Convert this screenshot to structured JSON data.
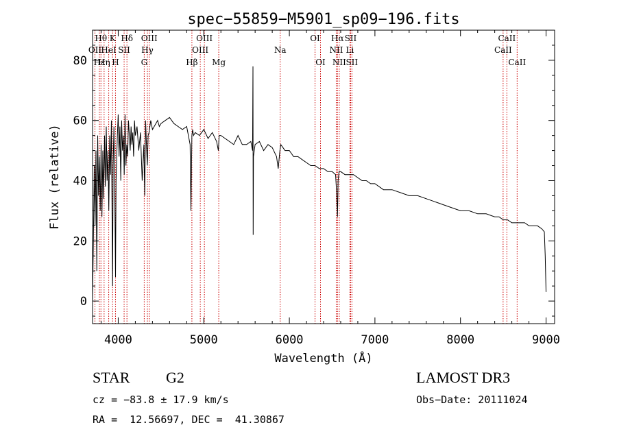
{
  "chart_data": {
    "type": "line",
    "title": "spec−55859−M5901_sp09−196.fits",
    "xlabel": "Wavelength (Å)",
    "ylabel": "Flux (relative)",
    "xlim": [
      3700,
      9100
    ],
    "ylim": [
      -7.5,
      90
    ],
    "xticks": [
      4000,
      5000,
      6000,
      7000,
      8000,
      9000
    ],
    "yticks": [
      0,
      20,
      40,
      60,
      80
    ],
    "spectrum": {
      "x": [
        3700,
        3710,
        3720,
        3730,
        3740,
        3750,
        3760,
        3770,
        3780,
        3790,
        3800,
        3810,
        3820,
        3830,
        3840,
        3850,
        3860,
        3870,
        3880,
        3890,
        3900,
        3910,
        3920,
        3930,
        3934,
        3940,
        3950,
        3960,
        3968,
        3975,
        3990,
        4000,
        4010,
        4020,
        4030,
        4040,
        4050,
        4060,
        4070,
        4080,
        4090,
        4100,
        4110,
        4120,
        4130,
        4140,
        4150,
        4160,
        4170,
        4180,
        4190,
        4200,
        4220,
        4240,
        4260,
        4280,
        4300,
        4310,
        4320,
        4330,
        4340,
        4350,
        4360,
        4380,
        4400,
        4420,
        4440,
        4460,
        4480,
        4500,
        4550,
        4600,
        4650,
        4700,
        4750,
        4800,
        4840,
        4850,
        4861,
        4870,
        4880,
        4900,
        4950,
        5000,
        5050,
        5100,
        5150,
        5170,
        5180,
        5200,
        5250,
        5300,
        5350,
        5400,
        5450,
        5500,
        5550,
        5570,
        5575,
        5577,
        5580,
        5590,
        5600,
        5650,
        5700,
        5750,
        5800,
        5850,
        5870,
        5890,
        5900,
        5950,
        6000,
        6050,
        6100,
        6150,
        6200,
        6250,
        6300,
        6350,
        6400,
        6450,
        6500,
        6540,
        6555,
        6563,
        6570,
        6580,
        6600,
        6650,
        6700,
        6750,
        6800,
        6850,
        6900,
        6950,
        7000,
        7100,
        7200,
        7300,
        7400,
        7500,
        7600,
        7700,
        7800,
        7900,
        8000,
        8100,
        8200,
        8300,
        8400,
        8450,
        8500,
        8550,
        8600,
        8650,
        8700,
        8750,
        8800,
        8850,
        8900,
        8950,
        8980,
        8990,
        9000
      ],
      "y": [
        0,
        20,
        45,
        25,
        50,
        10,
        55,
        35,
        48,
        30,
        52,
        28,
        50,
        34,
        55,
        38,
        58,
        40,
        50,
        30,
        55,
        42,
        60,
        20,
        5,
        45,
        58,
        35,
        8,
        40,
        55,
        62,
        48,
        58,
        40,
        60,
        50,
        55,
        42,
        62,
        45,
        52,
        48,
        60,
        55,
        50,
        58,
        52,
        56,
        48,
        60,
        55,
        58,
        50,
        56,
        40,
        52,
        35,
        60,
        52,
        45,
        55,
        56,
        60,
        57,
        58,
        59,
        60,
        58,
        59,
        60,
        61,
        59,
        58,
        57,
        58,
        52,
        30,
        55,
        57,
        55,
        56,
        55,
        57,
        54,
        56,
        53,
        50,
        55,
        55,
        54,
        53,
        52,
        55,
        52,
        52,
        53,
        50,
        78,
        22,
        48,
        50,
        52,
        53,
        50,
        52,
        51,
        48,
        44,
        50,
        52,
        50,
        50,
        48,
        48,
        47,
        46,
        45,
        45,
        44,
        44,
        43,
        43,
        42,
        35,
        28,
        40,
        43,
        43,
        42,
        42,
        42,
        41,
        40,
        40,
        39,
        39,
        37,
        37,
        36,
        35,
        35,
        34,
        33,
        32,
        31,
        30,
        30,
        29,
        29,
        28,
        28,
        27,
        27,
        26,
        26,
        26,
        26,
        25,
        25,
        25,
        24,
        23,
        15,
        3
      ]
    },
    "line_markers": [
      {
        "label": "Hθ",
        "x": 3798,
        "row": 1
      },
      {
        "label": "OII",
        "x": 3728,
        "row": 2
      },
      {
        "label": "Hε",
        "x": 3780,
        "row": 3
      },
      {
        "label": "HeI",
        "x": 3889,
        "row": 2
      },
      {
        "label": "Hη",
        "x": 3835,
        "row": 3
      },
      {
        "label": "K",
        "x": 3934,
        "row": 1
      },
      {
        "label": "SII",
        "x": 4069,
        "row": 2
      },
      {
        "label": "H",
        "x": 3968,
        "row": 3
      },
      {
        "label": "Hδ",
        "x": 4102,
        "row": 1
      },
      {
        "label": "OIII",
        "x": 4363,
        "row": 1
      },
      {
        "label": "Hγ",
        "x": 4341,
        "row": 2
      },
      {
        "label": "G",
        "x": 4304,
        "row": 3
      },
      {
        "label": "Hβ",
        "x": 4861,
        "row": 3
      },
      {
        "label": "OIII",
        "x": 5007,
        "row": 1
      },
      {
        "label": "OIII",
        "x": 4959,
        "row": 2
      },
      {
        "label": "Mg",
        "x": 5175,
        "row": 3
      },
      {
        "label": "Na",
        "x": 5893,
        "row": 2
      },
      {
        "label": "OI",
        "x": 6300,
        "row": 1
      },
      {
        "label": "OI",
        "x": 6364,
        "row": 3
      },
      {
        "label": "Hα",
        "x": 6563,
        "row": 1
      },
      {
        "label": "SII",
        "x": 6716,
        "row": 1
      },
      {
        "label": "NII",
        "x": 6548,
        "row": 2
      },
      {
        "label": "Li",
        "x": 6708,
        "row": 2
      },
      {
        "label": "NII",
        "x": 6583,
        "row": 3
      },
      {
        "label": "SII",
        "x": 6731,
        "row": 3
      },
      {
        "label": "CaII",
        "x": 8542,
        "row": 1
      },
      {
        "label": "CaII",
        "x": 8498,
        "row": 2
      },
      {
        "label": "CaII",
        "x": 8662,
        "row": 3
      }
    ],
    "line_color": "#000000",
    "marker_color": "#cc0000"
  },
  "info": {
    "class": "STAR",
    "subclass": "G2",
    "survey": "LAMOST DR3",
    "cz": "cz = −83.8 ± 17.9 km/s",
    "obs_date": "Obs−Date: 20111024",
    "coords": "RA =  12.56697, DEC =  41.30867"
  }
}
